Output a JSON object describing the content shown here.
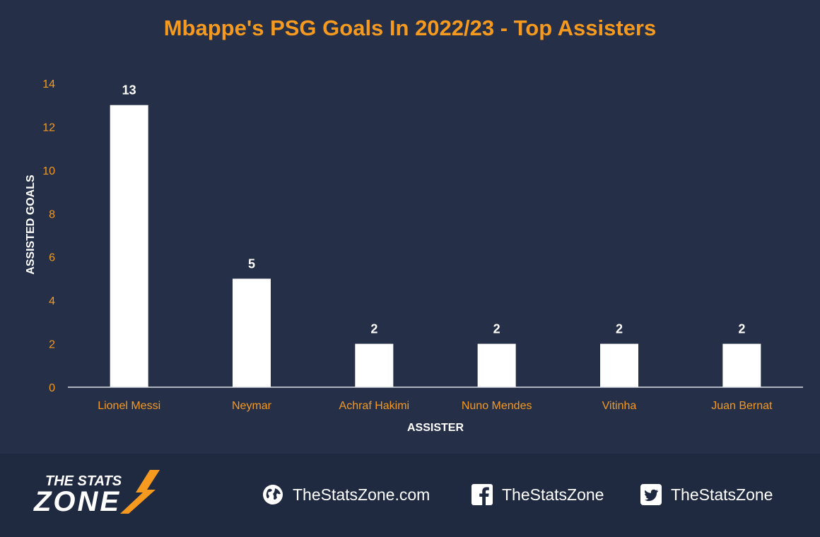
{
  "chart_data": {
    "type": "bar",
    "title": "Mbappe's PSG Goals In 2022/23 - Top Assisters",
    "categories": [
      "Lionel Messi",
      "Neymar",
      "Achraf Hakimi",
      "Nuno Mendes",
      "Vitinha",
      "Juan Bernat"
    ],
    "values": [
      13,
      5,
      2,
      2,
      2,
      2
    ],
    "xlabel": "ASSISTER",
    "ylabel": "ASSISTED GOALS",
    "ylim": [
      0,
      14
    ],
    "yticks": [
      0,
      2,
      4,
      6,
      8,
      10,
      12,
      14
    ],
    "grid": false,
    "data_labels": true,
    "colors": {
      "background": "#253048",
      "bar": "#ffffff",
      "title": "#f59a1f",
      "tick": "#f59a1f"
    }
  },
  "branding": {
    "logo_top": "THE STATS",
    "logo_bottom": "ZONE",
    "logo_icon": "lightning-swoosh-icon"
  },
  "footer": {
    "links": [
      {
        "icon": "globe-icon",
        "text": "TheStatsZone.com"
      },
      {
        "icon": "facebook-icon",
        "text": "TheStatsZone"
      },
      {
        "icon": "twitter-icon",
        "text": "TheStatsZone"
      }
    ]
  }
}
